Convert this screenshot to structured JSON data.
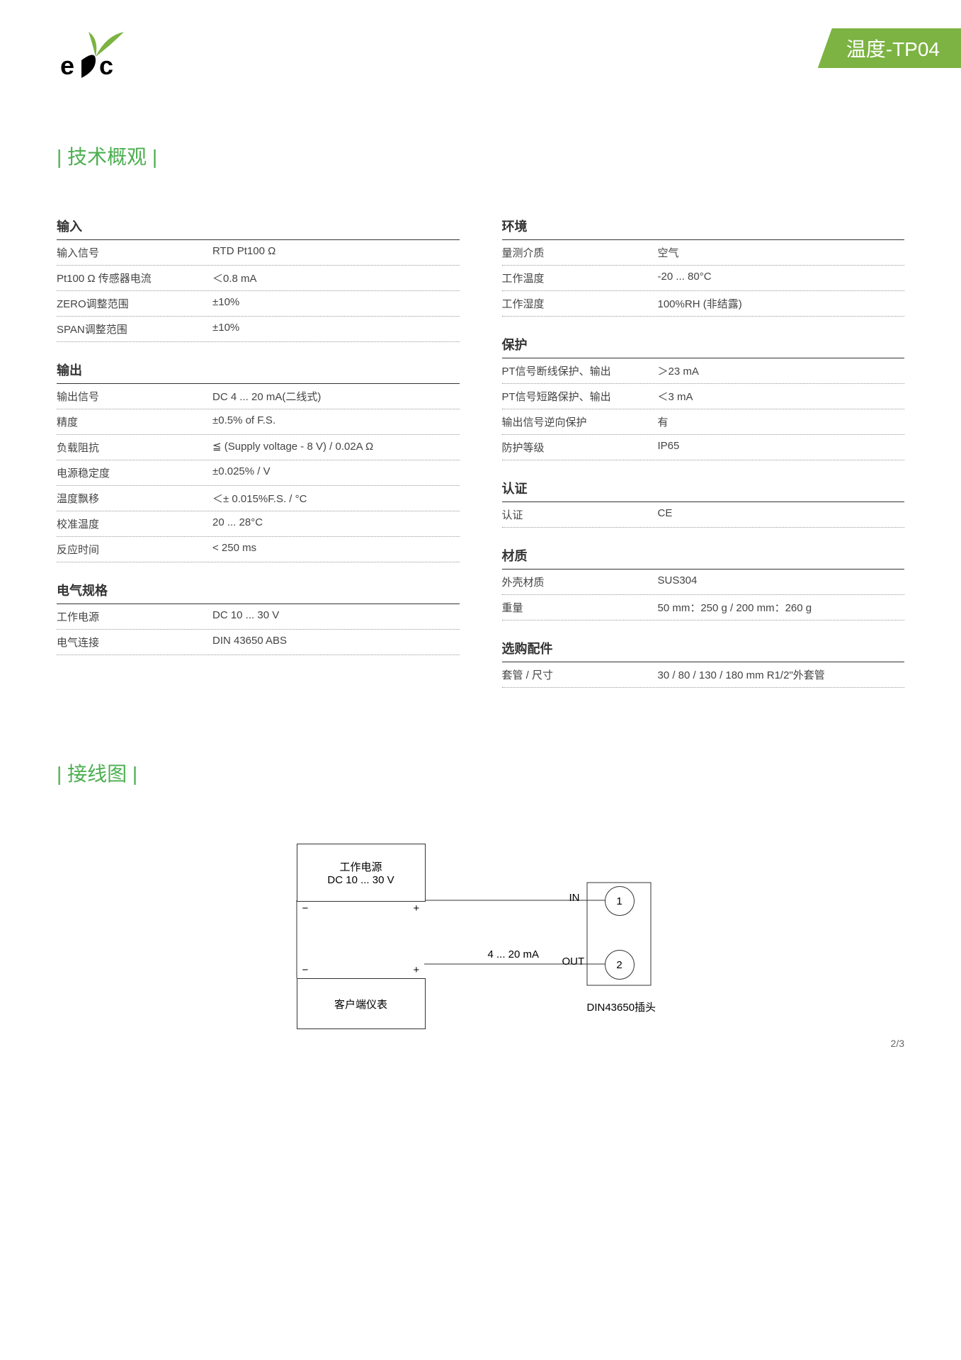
{
  "banner": "温度-TP04",
  "section1_title": "技术概观",
  "section2_title": "接线图",
  "left_groups": [
    {
      "title": "输入",
      "rows": [
        {
          "label": "输入信号",
          "value": "RTD Pt100 Ω"
        },
        {
          "label": "Pt100 Ω 传感器电流",
          "value": "＜0.8 mA"
        },
        {
          "label": "ZERO调整范围",
          "value": "±10%"
        },
        {
          "label": "SPAN调整范围",
          "value": "±10%"
        }
      ]
    },
    {
      "title": "输出",
      "rows": [
        {
          "label": "输出信号",
          "value": "DC 4 ... 20 mA(二线式)"
        },
        {
          "label": "精度",
          "value": "±0.5% of F.S."
        },
        {
          "label": "负载阻抗",
          "value": "≦ (Supply voltage - 8 V) / 0.02A Ω"
        },
        {
          "label": "电源稳定度",
          "value": "±0.025% / V"
        },
        {
          "label": "温度飘移",
          "value": "＜± 0.015%F.S. / °C"
        },
        {
          "label": "校准温度",
          "value": "20 ... 28°C"
        },
        {
          "label": "反应时间",
          "value": "< 250 ms"
        }
      ]
    },
    {
      "title": "电气规格",
      "rows": [
        {
          "label": "工作电源",
          "value": "DC 10 ... 30 V"
        },
        {
          "label": "电气连接",
          "value": "DIN 43650 ABS"
        }
      ]
    }
  ],
  "right_groups": [
    {
      "title": "环境",
      "rows": [
        {
          "label": "量测介质",
          "value": "空气"
        },
        {
          "label": "工作温度",
          "value": "-20 ... 80°C"
        },
        {
          "label": "工作湿度",
          "value": "100%RH (非结露)"
        }
      ]
    },
    {
      "title": "保护",
      "rows": [
        {
          "label": "PT信号断线保护、输出",
          "value": "＞23 mA"
        },
        {
          "label": "PT信号短路保护、输出",
          "value": "＜3 mA"
        },
        {
          "label": "输出信号逆向保护",
          "value": "有"
        },
        {
          "label": "防护等级",
          "value": "IP65"
        }
      ]
    },
    {
      "title": "认证",
      "rows": [
        {
          "label": "认证",
          "value": "CE"
        }
      ]
    },
    {
      "title": "材质",
      "rows": [
        {
          "label": "外壳材质",
          "value": "SUS304"
        },
        {
          "label": "重量",
          "value": "50 mm：250 g / 200 mm：260 g"
        }
      ]
    },
    {
      "title": "选购配件",
      "rows": [
        {
          "label": "套管 / 尺寸",
          "value": "30 / 80  / 130  / 180 mm R1/2\"外套管"
        }
      ]
    }
  ],
  "diagram": {
    "power_box_l1": "工作电源",
    "power_box_l2": "DC 10 ... 30 V",
    "client_box": "客户端仪表",
    "current": "4 ... 20 mA",
    "in": "IN",
    "out": "OUT",
    "t1": "1",
    "t2": "2",
    "conn": "DIN43650插头",
    "minus": "−",
    "plus": "+"
  },
  "page_num": "2/3"
}
